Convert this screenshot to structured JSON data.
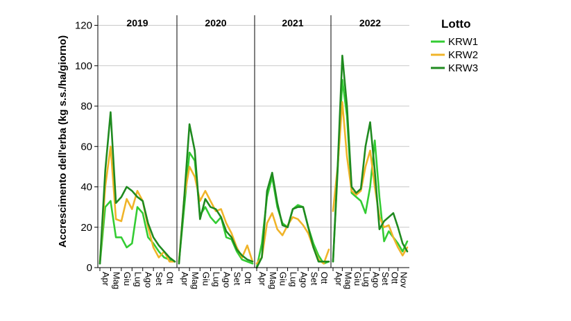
{
  "chart_data": {
    "type": "line",
    "ylabel": "Accrescimento dell'erba (kg s.s./ha/giorno)",
    "xlabel": "",
    "ylim": [
      0,
      125
    ],
    "yticks": [
      0,
      20,
      40,
      60,
      80,
      100,
      120
    ],
    "grid": "horizontal",
    "legend": {
      "title": "Lotto",
      "position": "right"
    },
    "colors": {
      "KRW1": "#33cc33",
      "KRW2": "#f0b429",
      "KRW3": "#1f8a1f"
    },
    "series_names": [
      "KRW1",
      "KRW2",
      "KRW3"
    ],
    "panels": [
      {
        "title": "2019",
        "month_labels": [
          "Apr",
          "Mag",
          "Giu",
          "Lug",
          "Ago",
          "Set",
          "Ott"
        ],
        "x_range": [
          0,
          7
        ],
        "series": [
          {
            "name": "KRW1",
            "x": [
              0,
              0.5,
              1,
              1.5,
              2,
              2.5,
              3,
              3.5,
              4,
              4.5,
              5,
              5.5,
              6,
              6.5,
              7
            ],
            "y": [
              2,
              30,
              33,
              15,
              15,
              10,
              12,
              30,
              27,
              15,
              12,
              8,
              5,
              4,
              3
            ]
          },
          {
            "name": "KRW2",
            "x": [
              0,
              0.5,
              1,
              1.5,
              2,
              2.5,
              3,
              3.5,
              4,
              4.5,
              5,
              5.5,
              6,
              6.5,
              7
            ],
            "y": [
              3,
              40,
              60,
              24,
              23,
              34,
              29,
              38,
              33,
              20,
              10,
              5,
              8,
              3,
              3
            ]
          },
          {
            "name": "KRW3",
            "x": [
              0,
              0.5,
              1,
              1.5,
              2,
              2.5,
              3,
              3.5,
              4,
              4.5,
              5,
              5.5,
              6,
              6.5,
              7
            ],
            "y": [
              2,
              48,
              77,
              32,
              35,
              40,
              38,
              35,
              33,
              22,
              15,
              11,
              8,
              5,
              3
            ]
          }
        ]
      },
      {
        "title": "2020",
        "month_labels": [
          "Apr",
          "Mag",
          "Giu",
          "Lug",
          "Ago",
          "Set",
          "Ott"
        ],
        "x_range": [
          0,
          7
        ],
        "series": [
          {
            "name": "KRW1",
            "x": [
              0,
              0.5,
              1,
              1.5,
              2,
              2.5,
              3,
              3.5,
              4,
              4.5,
              5,
              5.5,
              6,
              6.5,
              7
            ],
            "y": [
              3,
              30,
              57,
              53,
              26,
              30,
              25,
              22,
              25,
              15,
              14,
              8,
              4,
              3,
              2
            ]
          },
          {
            "name": "KRW2",
            "x": [
              0,
              0.5,
              1,
              1.5,
              2,
              2.5,
              3,
              3.5,
              4,
              4.5,
              5,
              5.5,
              6,
              6.5,
              7
            ],
            "y": [
              3,
              35,
              50,
              45,
              33,
              38,
              33,
              28,
              29,
              22,
              17,
              10,
              5,
              11,
              3
            ]
          },
          {
            "name": "KRW3",
            "x": [
              0,
              0.5,
              1,
              1.5,
              2,
              2.5,
              3,
              3.5,
              4,
              4.5,
              5,
              5.5,
              6,
              6.5,
              7
            ],
            "y": [
              2,
              35,
              71,
              58,
              24,
              34,
              30,
              29,
              25,
              18,
              15,
              9,
              6,
              4,
              3
            ]
          }
        ]
      },
      {
        "title": "2021",
        "month_labels": [
          "Apr",
          "Mag",
          "Giu",
          "Lug",
          "Ago",
          "Set",
          "Ott"
        ],
        "x_range": [
          0,
          7
        ],
        "series": [
          {
            "name": "KRW1",
            "x": [
              0,
              0.5,
              1,
              1.5,
              2,
              2.5,
              3,
              3.5,
              4,
              4.5,
              5,
              5.5,
              6,
              6.5,
              7
            ],
            "y": [
              0,
              12,
              35,
              45,
              30,
              22,
              20,
              29,
              31,
              30,
              20,
              12,
              6,
              2,
              3
            ]
          },
          {
            "name": "KRW2",
            "x": [
              0,
              0.5,
              1,
              1.5,
              2,
              2.5,
              3,
              3.5,
              4,
              4.5,
              5,
              5.5,
              6,
              6.5,
              7
            ],
            "y": [
              2,
              5,
              22,
              27,
              19,
              16,
              21,
              25,
              24,
              21,
              17,
              10,
              4,
              2,
              9
            ]
          },
          {
            "name": "KRW3",
            "x": [
              0,
              0.5,
              1,
              1.5,
              2,
              2.5,
              3,
              3.5,
              4,
              4.5,
              5,
              5.5,
              6,
              6.5,
              7
            ],
            "y": [
              0,
              5,
              38,
              47,
              32,
              21,
              20,
              29,
              30,
              30,
              20,
              10,
              3,
              3,
              3
            ]
          }
        ]
      },
      {
        "title": "2022",
        "month_labels": [
          "Apr",
          "Mag",
          "Giu",
          "Lug",
          "Ago",
          "Set",
          "Ott",
          "Nov"
        ],
        "x_range": [
          0,
          8
        ],
        "series": [
          {
            "name": "KRW1",
            "x": [
              0,
              0.5,
              1,
              1.5,
              2,
              2.5,
              3,
              3.5,
              4,
              4.5,
              5,
              5.5,
              6,
              6.5,
              7,
              7.5,
              8
            ],
            "y": [
              3,
              48,
              93,
              75,
              37,
              35,
              33,
              27,
              40,
              63,
              35,
              13,
              18,
              15,
              12,
              8,
              13
            ]
          },
          {
            "name": "KRW2",
            "x": [
              0,
              0.5,
              1,
              1.5,
              2,
              2.5,
              3,
              3.5,
              4,
              4.5,
              5,
              5.5,
              6,
              6.5,
              7,
              7.5,
              8
            ],
            "y": [
              28,
              50,
              82,
              55,
              38,
              36,
              38,
              50,
              58,
              40,
              25,
              20,
              21,
              15,
              10,
              6,
              10
            ]
          },
          {
            "name": "KRW3",
            "x": [
              0,
              0.5,
              1,
              1.5,
              2,
              2.5,
              3,
              3.5,
              4,
              4.5,
              5,
              5.5,
              6,
              6.5,
              7,
              7.5,
              8
            ],
            "y": [
              3,
              50,
              105,
              80,
              40,
              37,
              39,
              60,
              72,
              48,
              19,
              23,
              25,
              27,
              20,
              12,
              8
            ]
          }
        ]
      }
    ]
  }
}
